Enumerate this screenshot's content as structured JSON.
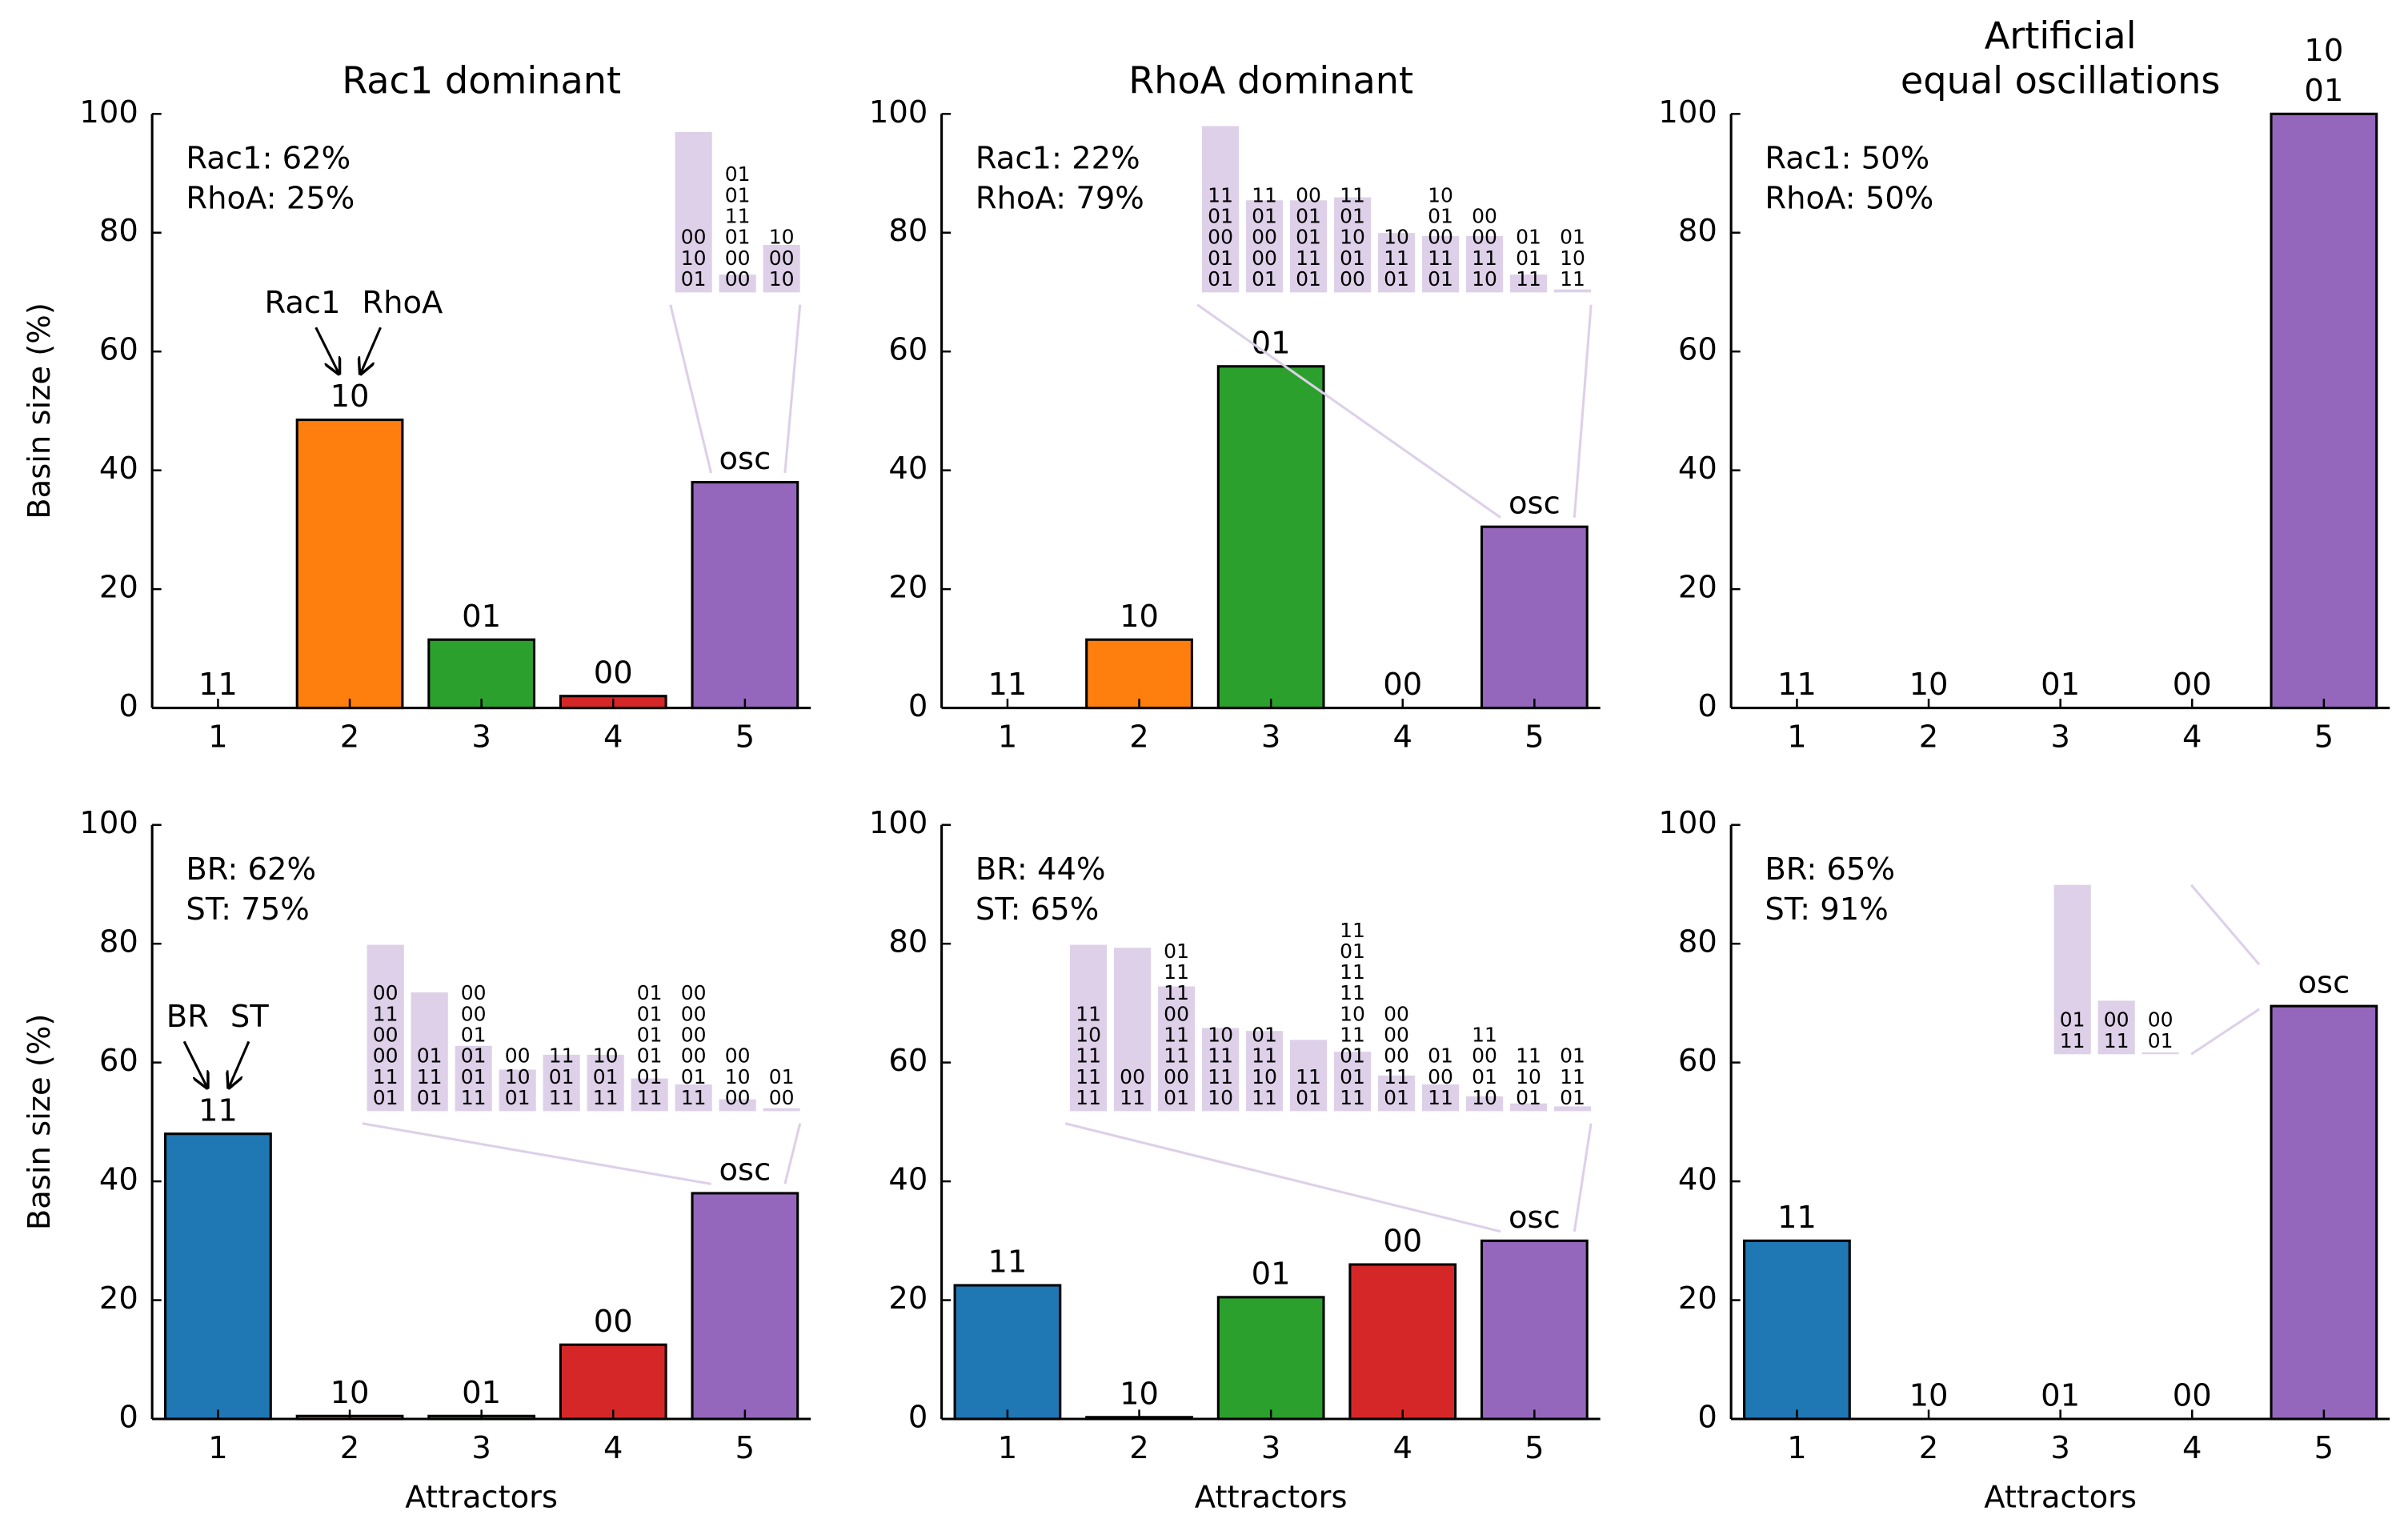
{
  "chart_data": [
    {
      "type": "bar",
      "title": [
        "Rac1 dominant"
      ],
      "ylabel": "Basin size (%)",
      "categories": [
        "1",
        "2",
        "3",
        "4",
        "5"
      ],
      "values": [
        0,
        48.5,
        11.5,
        2,
        38
      ],
      "colors": [
        "#1f77b4",
        "#ff7f0e",
        "#2ca02c",
        "#d62728",
        "#9467bd"
      ],
      "bar_labels": [
        [
          "11"
        ],
        [
          "10"
        ],
        [
          "01"
        ],
        [
          "00"
        ],
        [
          "osc"
        ]
      ],
      "ylim": [
        0,
        100
      ],
      "yticks": [
        0,
        20,
        40,
        60,
        80,
        100
      ],
      "annotations": [
        "Rac1: 62%",
        "RhoA: 25%"
      ],
      "arrow_labels": [
        "Rac1",
        "RhoA"
      ],
      "inset": {
        "color": "#ddd0e8",
        "values": [
          27,
          3,
          8
        ],
        "labels": [
          [
            "00",
            "10",
            "01"
          ],
          [
            "01",
            "01",
            "11",
            "01",
            "00",
            "00"
          ],
          [
            "10",
            "00",
            "10"
          ]
        ]
      }
    },
    {
      "type": "bar",
      "title": [
        "RhoA dominant"
      ],
      "categories": [
        "1",
        "2",
        "3",
        "4",
        "5"
      ],
      "values": [
        0,
        11.5,
        57.5,
        0,
        30.5
      ],
      "colors": [
        "#1f77b4",
        "#ff7f0e",
        "#2ca02c",
        "#d62728",
        "#9467bd"
      ],
      "bar_labels": [
        [
          "11"
        ],
        [
          "10"
        ],
        [
          "01"
        ],
        [
          "00"
        ],
        [
          "osc"
        ]
      ],
      "ylim": [
        0,
        100
      ],
      "yticks": [
        0,
        20,
        40,
        60,
        80,
        100
      ],
      "annotations": [
        "Rac1: 22%",
        "RhoA: 79%"
      ],
      "inset": {
        "color": "#ddd0e8",
        "values": [
          28,
          15.5,
          15.5,
          16,
          10,
          9.5,
          9.5,
          3,
          0.5
        ],
        "labels": [
          [
            "11",
            "01",
            "00",
            "01",
            "01"
          ],
          [
            "11",
            "01",
            "00",
            "00",
            "01"
          ],
          [
            "00",
            "01",
            "01",
            "11",
            "01"
          ],
          [
            "11",
            "01",
            "10",
            "01",
            "00"
          ],
          [
            "10",
            "11",
            "01"
          ],
          [
            "10",
            "01",
            "00",
            "11",
            "01"
          ],
          [
            "00",
            "00",
            "11",
            "10"
          ],
          [
            "01",
            "01",
            "11"
          ],
          [
            "01",
            "10",
            "11"
          ]
        ]
      }
    },
    {
      "type": "bar",
      "title": [
        "Artificial",
        "equal oscillations"
      ],
      "categories": [
        "1",
        "2",
        "3",
        "4",
        "5"
      ],
      "values": [
        0,
        0,
        0,
        0,
        100
      ],
      "colors": [
        "#1f77b4",
        "#ff7f0e",
        "#2ca02c",
        "#d62728",
        "#9467bd"
      ],
      "bar_labels": [
        [
          "11"
        ],
        [
          "10"
        ],
        [
          "01"
        ],
        [
          "00"
        ],
        [
          "10",
          "01"
        ]
      ],
      "ylim": [
        0,
        100
      ],
      "yticks": [
        0,
        20,
        40,
        60,
        80,
        100
      ],
      "annotations": [
        "Rac1: 50%",
        "RhoA: 50%"
      ]
    },
    {
      "type": "bar",
      "ylabel": "Basin size (%)",
      "xlabel": "Attractors",
      "categories": [
        "1",
        "2",
        "3",
        "4",
        "5"
      ],
      "values": [
        48,
        0.5,
        0.5,
        12.5,
        38
      ],
      "colors": [
        "#1f77b4",
        "#ff7f0e",
        "#2ca02c",
        "#d62728",
        "#9467bd"
      ],
      "bar_labels": [
        [
          "11"
        ],
        [
          "10"
        ],
        [
          "01"
        ],
        [
          "00"
        ],
        [
          "osc"
        ]
      ],
      "ylim": [
        0,
        100
      ],
      "yticks": [
        0,
        20,
        40,
        60,
        80,
        100
      ],
      "annotations": [
        "BR: 62%",
        "ST: 75%"
      ],
      "arrow_labels": [
        "BR",
        "ST"
      ],
      "inset": {
        "color": "#ddd0e8",
        "values": [
          28,
          20,
          11,
          7,
          9.5,
          9.5,
          5.5,
          4.5,
          2,
          0.5
        ],
        "labels": [
          [
            "00",
            "11",
            "00",
            "00",
            "11",
            "01"
          ],
          [
            "01",
            "11",
            "01"
          ],
          [
            "00",
            "00",
            "01",
            "01",
            "01",
            "11"
          ],
          [
            "00",
            "10",
            "01"
          ],
          [
            "11",
            "01",
            "11"
          ],
          [
            "10",
            "01",
            "11"
          ],
          [
            "01",
            "01",
            "01",
            "01",
            "01",
            "11"
          ],
          [
            "00",
            "00",
            "00",
            "00",
            "01",
            "11"
          ],
          [
            "00",
            "10",
            "00"
          ],
          [
            "01",
            "00"
          ]
        ]
      }
    },
    {
      "type": "bar",
      "xlabel": "Attractors",
      "categories": [
        "1",
        "2",
        "3",
        "4",
        "5"
      ],
      "values": [
        22.5,
        0.3,
        20.5,
        26,
        30
      ],
      "colors": [
        "#1f77b4",
        "#ff7f0e",
        "#2ca02c",
        "#d62728",
        "#9467bd"
      ],
      "bar_labels": [
        [
          "11"
        ],
        [
          "10"
        ],
        [
          "01"
        ],
        [
          "00"
        ],
        [
          "osc"
        ]
      ],
      "ylim": [
        0,
        100
      ],
      "yticks": [
        0,
        20,
        40,
        60,
        80,
        100
      ],
      "annotations": [
        "BR: 44%",
        "ST: 65%"
      ],
      "inset": {
        "color": "#ddd0e8",
        "values": [
          28,
          27.5,
          21,
          14,
          13.5,
          12,
          10,
          6,
          4.5,
          2.5,
          1.3,
          0.8
        ],
        "labels": [
          [
            "11",
            "10",
            "11",
            "11",
            "11"
          ],
          [
            "00",
            "11"
          ],
          [
            "01",
            "11",
            "11",
            "00",
            "11",
            "11",
            "00",
            "01"
          ],
          [
            "10",
            "11",
            "11",
            "10"
          ],
          [
            "01",
            "11",
            "10",
            "11"
          ],
          [
            "11",
            "01"
          ],
          [
            "11",
            "01",
            "11",
            "11",
            "10",
            "11",
            "01",
            "01",
            "11"
          ],
          [
            "00",
            "00",
            "00",
            "11",
            "01"
          ],
          [
            "01",
            "00",
            "11"
          ],
          [
            "11",
            "00",
            "01",
            "10"
          ],
          [
            "11",
            "10",
            "01"
          ],
          [
            "01",
            "11",
            "01"
          ]
        ]
      }
    },
    {
      "type": "bar",
      "xlabel": "Attractors",
      "categories": [
        "1",
        "2",
        "3",
        "4",
        "5"
      ],
      "values": [
        30,
        0,
        0,
        0,
        69.5
      ],
      "colors": [
        "#1f77b4",
        "#ff7f0e",
        "#2ca02c",
        "#d62728",
        "#9467bd"
      ],
      "bar_labels": [
        [
          "11"
        ],
        [
          "10"
        ],
        [
          "01"
        ],
        [
          "00"
        ],
        [
          "osc"
        ]
      ],
      "ylim": [
        0,
        100
      ],
      "yticks": [
        0,
        20,
        40,
        60,
        80,
        100
      ],
      "annotations": [
        "BR: 65%",
        "ST: 91%"
      ],
      "inset": {
        "color": "#ddd0e8",
        "values": [
          28.5,
          9,
          0.3
        ],
        "labels": [
          [
            "01",
            "11"
          ],
          [
            "00",
            "11"
          ],
          [
            "00",
            "01"
          ]
        ]
      }
    }
  ]
}
